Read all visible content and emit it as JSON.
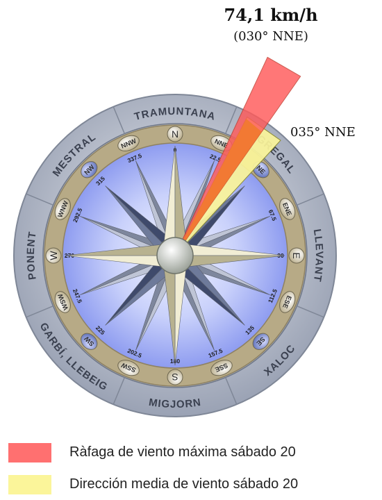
{
  "gust": {
    "speed_label": "74,1 km/h",
    "direction_label": "(030° NNE)",
    "direction_deg": 30,
    "color": "#ff5a5a"
  },
  "mean": {
    "direction_label": "035° NNE",
    "direction_deg": 35,
    "color": "#fbf59a"
  },
  "compass": {
    "wind_names": [
      {
        "id": "tramuntana",
        "text": "TRAMUNTANA",
        "angle": 0
      },
      {
        "id": "gregal",
        "text": "GREGAL",
        "angle": 45
      },
      {
        "id": "llevant",
        "text": "LLEVANT",
        "angle": 90
      },
      {
        "id": "xaloc",
        "text": "XALOC",
        "angle": 135
      },
      {
        "id": "migjorn",
        "text": "MIGJORN",
        "angle": 180
      },
      {
        "id": "garbi-llebeig",
        "text": "GARBÍ, LLEBEIG",
        "angle": 225
      },
      {
        "id": "ponent",
        "text": "PONENT",
        "angle": 270
      },
      {
        "id": "mestral",
        "text": "MESTRAL",
        "angle": 315
      }
    ],
    "points": [
      {
        "label": "N",
        "angle": 0
      },
      {
        "label": "NNE",
        "angle": 22.5
      },
      {
        "label": "NE",
        "angle": 45
      },
      {
        "label": "ENE",
        "angle": 67.5
      },
      {
        "label": "E",
        "angle": 90
      },
      {
        "label": "ESE",
        "angle": 112.5
      },
      {
        "label": "SE",
        "angle": 135
      },
      {
        "label": "SSE",
        "angle": 157.5
      },
      {
        "label": "S",
        "angle": 180
      },
      {
        "label": "SSW",
        "angle": 202.5
      },
      {
        "label": "SW",
        "angle": 225
      },
      {
        "label": "WSW",
        "angle": 247.5
      },
      {
        "label": "W",
        "angle": 270
      },
      {
        "label": "WNW",
        "angle": 292.5
      },
      {
        "label": "NW",
        "angle": 315
      },
      {
        "label": "NNW",
        "angle": 337.5
      }
    ],
    "degree_labels": [
      {
        "text": "0",
        "angle": 0
      },
      {
        "text": "22.5",
        "angle": 22.5
      },
      {
        "text": "67.5",
        "angle": 67.5
      },
      {
        "text": "90",
        "angle": 90
      },
      {
        "text": "112.5",
        "angle": 112.5
      },
      {
        "text": "135",
        "angle": 135
      },
      {
        "text": "157.5",
        "angle": 157.5
      },
      {
        "text": "180",
        "angle": 180
      },
      {
        "text": "202.5",
        "angle": 202.5
      },
      {
        "text": "225",
        "angle": 225
      },
      {
        "text": "247.5",
        "angle": 247.5
      },
      {
        "text": "270",
        "angle": 270
      },
      {
        "text": "292.5",
        "angle": 292.5
      },
      {
        "text": "315",
        "angle": 315
      },
      {
        "text": "337.5",
        "angle": 337.5
      }
    ]
  },
  "legend": [
    {
      "id": "gust",
      "label": "Ràfaga de viento máxima sábado 20",
      "color": "#ff7070"
    },
    {
      "id": "mean",
      "label": "Dirección media de viento sábado 20",
      "color": "#fbf59a"
    }
  ]
}
